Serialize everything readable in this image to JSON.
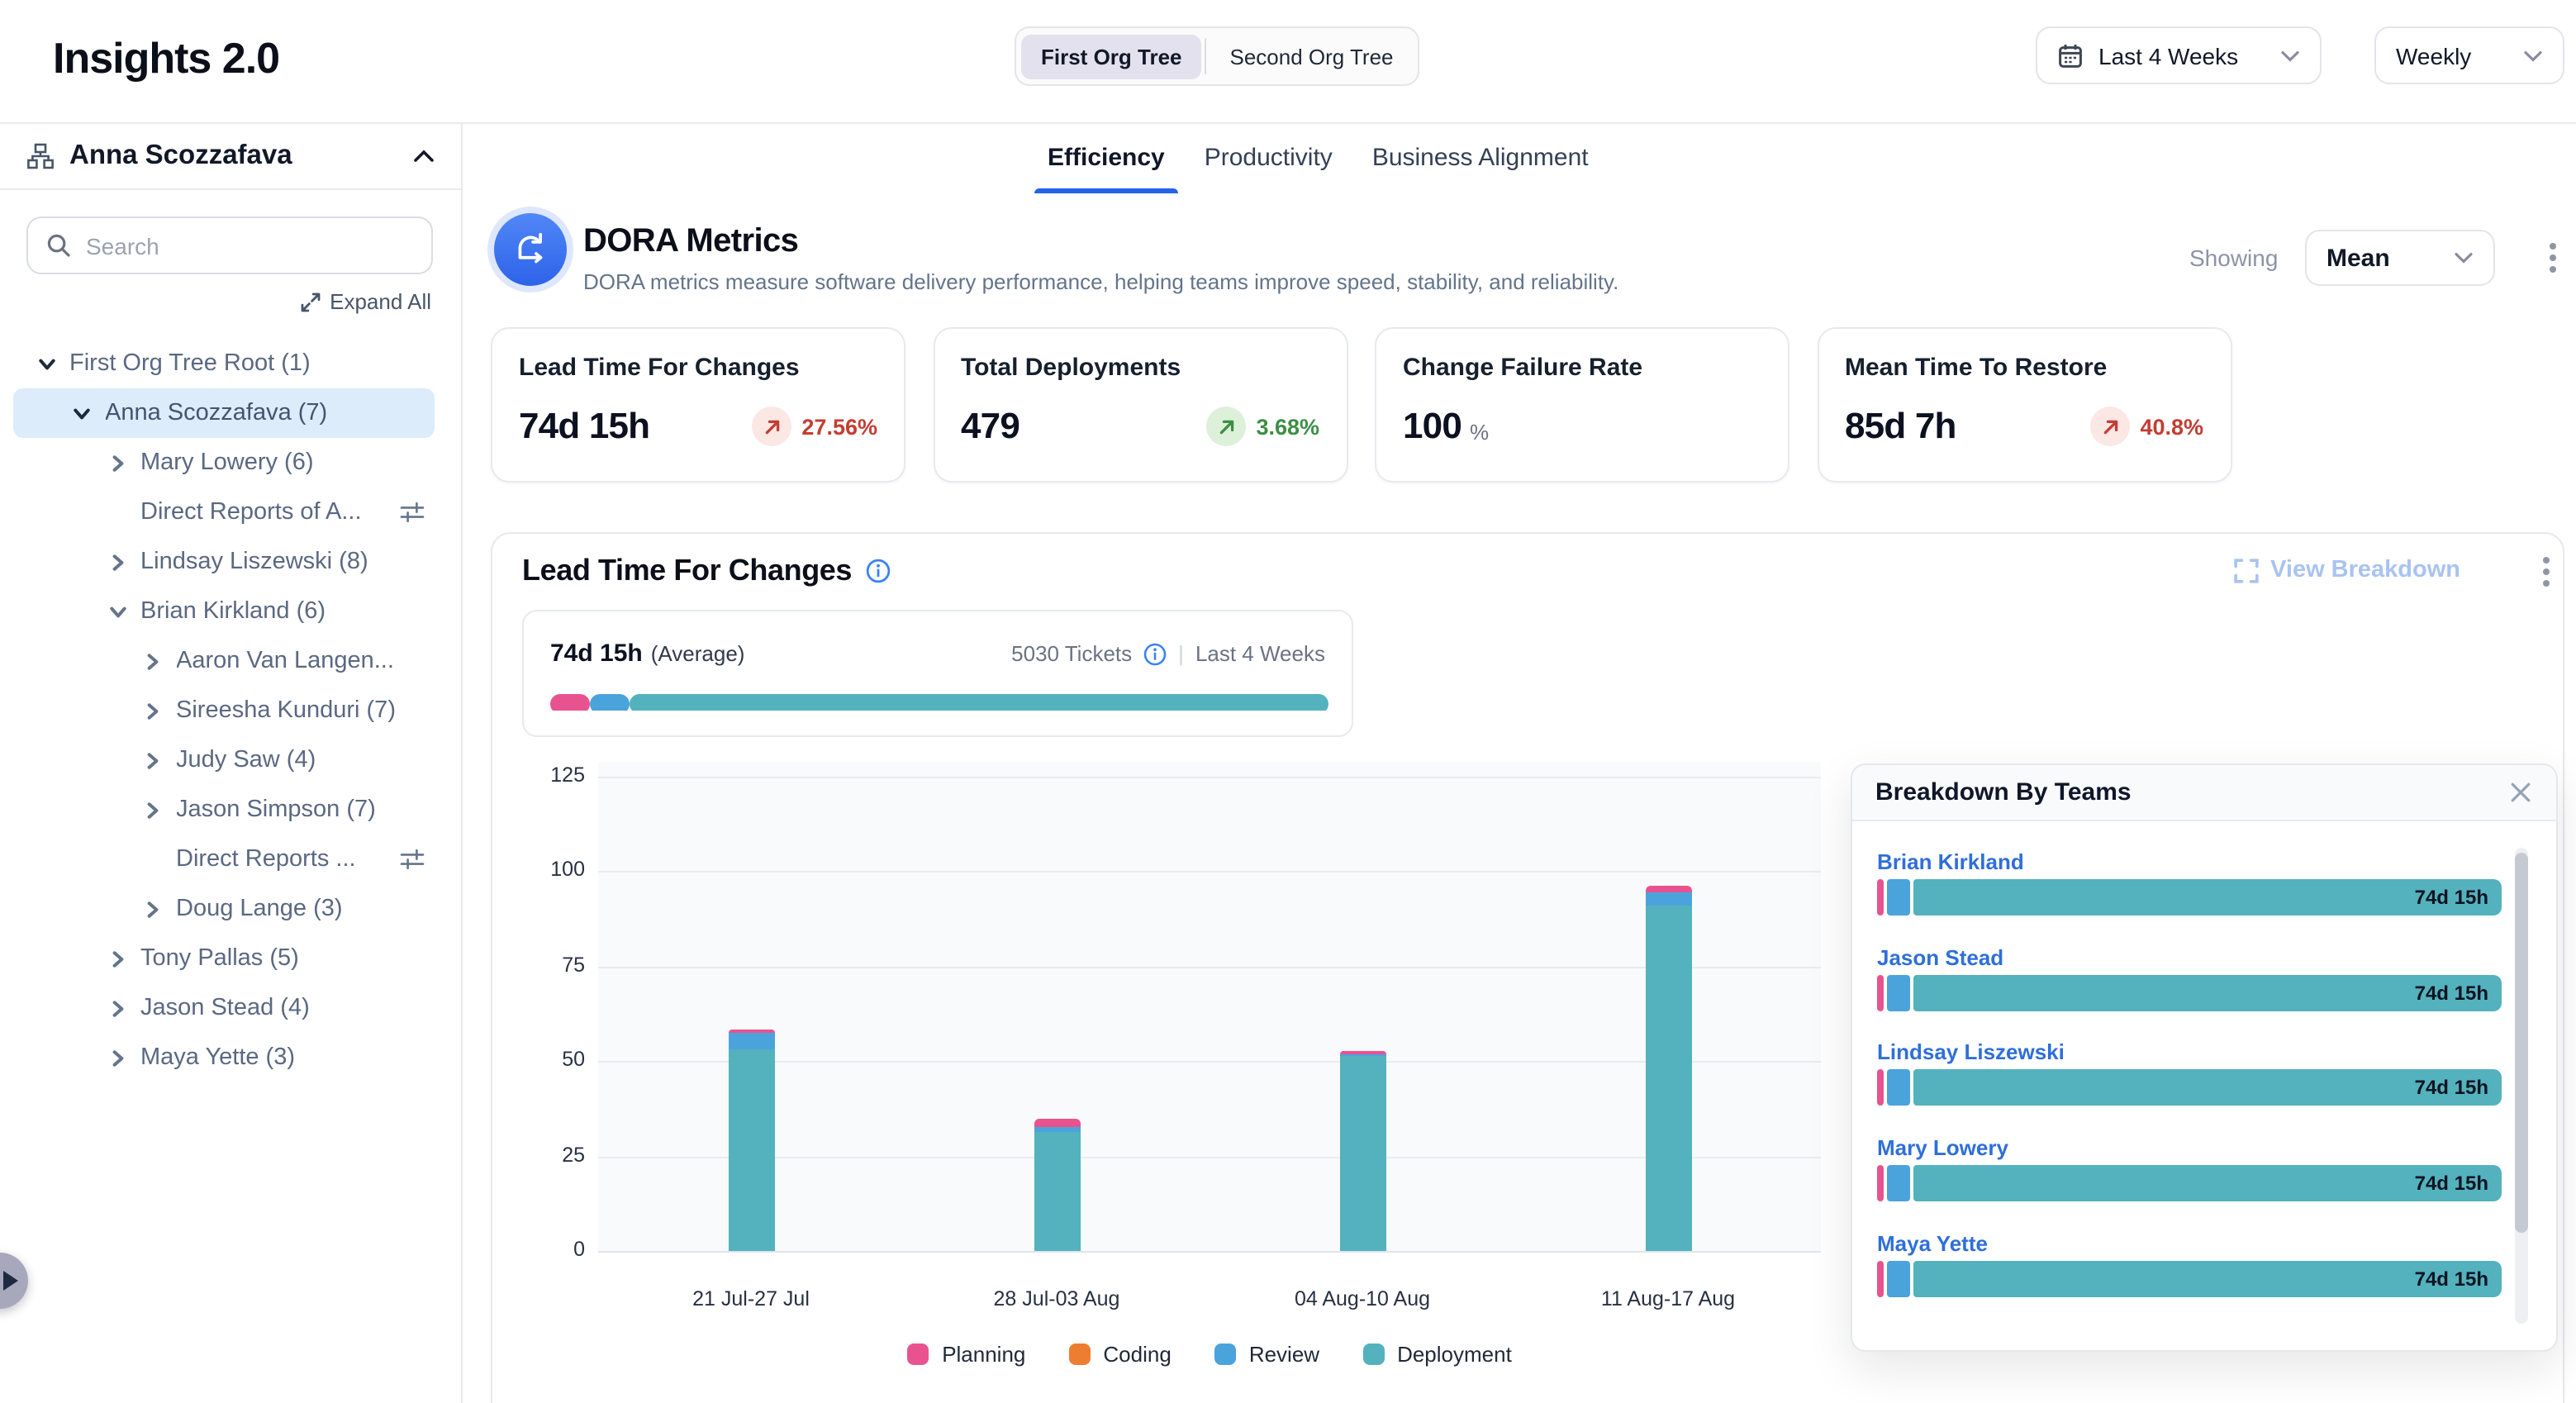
{
  "app": {
    "title": "Insights 2.0"
  },
  "header": {
    "org_toggle": {
      "options": [
        "First Org Tree",
        "Second Org Tree"
      ],
      "selected_index": 0
    },
    "date_range_label": "Last 4 Weeks",
    "granularity_label": "Weekly"
  },
  "sidebar": {
    "user_name": "Anna Scozzafava",
    "search_placeholder": "Search",
    "expand_all_label": "Expand All",
    "tree": [
      {
        "label": "First Org Tree Root (1)",
        "level": 0,
        "state": "expanded"
      },
      {
        "label": "Anna Scozzafava (7)",
        "level": 1,
        "state": "expanded",
        "selected": true
      },
      {
        "label": "Mary Lowery (6)",
        "level": 2,
        "state": "collapsed"
      },
      {
        "label": "Direct Reports of A...",
        "level": 2,
        "state": "leaf",
        "filter_icon": true
      },
      {
        "label": "Lindsay Liszewski (8)",
        "level": 2,
        "state": "collapsed"
      },
      {
        "label": "Brian Kirkland (6)",
        "level": 2,
        "state": "expanded"
      },
      {
        "label": "Aaron Van Langen...",
        "level": 3,
        "state": "collapsed"
      },
      {
        "label": "Sireesha Kunduri (7)",
        "level": 3,
        "state": "collapsed"
      },
      {
        "label": "Judy Saw (4)",
        "level": 3,
        "state": "collapsed"
      },
      {
        "label": "Jason Simpson (7)",
        "level": 3,
        "state": "collapsed"
      },
      {
        "label": "Direct Reports ...",
        "level": 3,
        "state": "leaf",
        "filter_icon": true
      },
      {
        "label": "Doug Lange (3)",
        "level": 3,
        "state": "collapsed"
      },
      {
        "label": "Tony Pallas (5)",
        "level": 2,
        "state": "collapsed"
      },
      {
        "label": "Jason Stead (4)",
        "level": 2,
        "state": "collapsed"
      },
      {
        "label": "Maya Yette (3)",
        "level": 2,
        "state": "collapsed"
      }
    ]
  },
  "tabs": {
    "items": [
      "Efficiency",
      "Productivity",
      "Business Alignment"
    ],
    "active_index": 0
  },
  "dora": {
    "title": "DORA Metrics",
    "description": "DORA metrics measure software delivery performance, helping teams improve speed, stability, and reliability.",
    "showing_label": "Showing",
    "showing_value": "Mean",
    "cards": [
      {
        "title": "Lead Time For Changes",
        "value": "74d 15h",
        "delta": "27.56%",
        "trend": "up",
        "sentiment": "negative"
      },
      {
        "title": "Total Deployments",
        "value": "479",
        "delta": "3.68%",
        "trend": "up",
        "sentiment": "positive"
      },
      {
        "title": "Change Failure Rate",
        "value": "100",
        "value_suffix": "%"
      },
      {
        "title": "Mean Time To Restore",
        "value": "85d 7h",
        "delta": "40.8%",
        "trend": "up",
        "sentiment": "negative"
      }
    ]
  },
  "lead_time": {
    "title": "Lead Time For Changes",
    "view_breakdown_label": "View Breakdown",
    "average_value": "74d 15h",
    "average_suffix": "(Average)",
    "tickets_label": "5030 Tickets",
    "period_label": "Last 4 Weeks",
    "avg_bar_segments": [
      {
        "name": "Planning",
        "pct": 2.1
      },
      {
        "name": "Review",
        "pct": 4.7
      },
      {
        "name": "Deployment",
        "pct": 93.2
      }
    ]
  },
  "chart_data": {
    "type": "bar",
    "stacked": true,
    "title": "Lead Time For Changes",
    "categories": [
      "21 Jul-27 Jul",
      "28 Jul-03 Aug",
      "04 Aug-10 Aug",
      "11 Aug-17 Aug"
    ],
    "series": [
      {
        "name": "Planning",
        "color": "#e8538f",
        "values": [
          1,
          2.5,
          0.8,
          2
        ]
      },
      {
        "name": "Coding",
        "color": "#ed7d31",
        "values": [
          0,
          0,
          0,
          0
        ]
      },
      {
        "name": "Review",
        "color": "#4ba3dc",
        "values": [
          4.5,
          1,
          0.5,
          3.5
        ]
      },
      {
        "name": "Deployment",
        "color": "#53b2bd",
        "values": [
          53,
          31.5,
          51.5,
          91
        ]
      }
    ],
    "stack_order_bottom_to_top": [
      "Deployment",
      "Review",
      "Coding",
      "Planning"
    ],
    "totals_estimated": [
      58.5,
      35,
      52.8,
      96.5
    ],
    "xlabel": "",
    "ylabel": "",
    "ylim": [
      0,
      125
    ],
    "yticks": [
      0,
      25,
      50,
      75,
      100,
      125
    ],
    "grid": true,
    "legend_position": "bottom"
  },
  "breakdown": {
    "title": "Breakdown By Teams",
    "teams": [
      {
        "name": "Brian Kirkland",
        "value": "74d 15h"
      },
      {
        "name": "Jason Stead",
        "value": "74d 15h"
      },
      {
        "name": "Lindsay Liszewski",
        "value": "74d 15h"
      },
      {
        "name": "Mary Lowery",
        "value": "74d 15h"
      },
      {
        "name": "Maya Yette",
        "value": "74d 15h"
      }
    ]
  },
  "colors": {
    "accent_blue": "#2563eb",
    "link_blue": "#2e6fd9",
    "planning_pink": "#e8538f",
    "coding_orange": "#ed7d31",
    "review_blue": "#4ba3dc",
    "deployment_teal": "#53b2bd",
    "delta_negative_red": "#c43d32",
    "delta_positive_green": "#3c8f43",
    "selected_tree_row_bg": "#dcecfb"
  }
}
